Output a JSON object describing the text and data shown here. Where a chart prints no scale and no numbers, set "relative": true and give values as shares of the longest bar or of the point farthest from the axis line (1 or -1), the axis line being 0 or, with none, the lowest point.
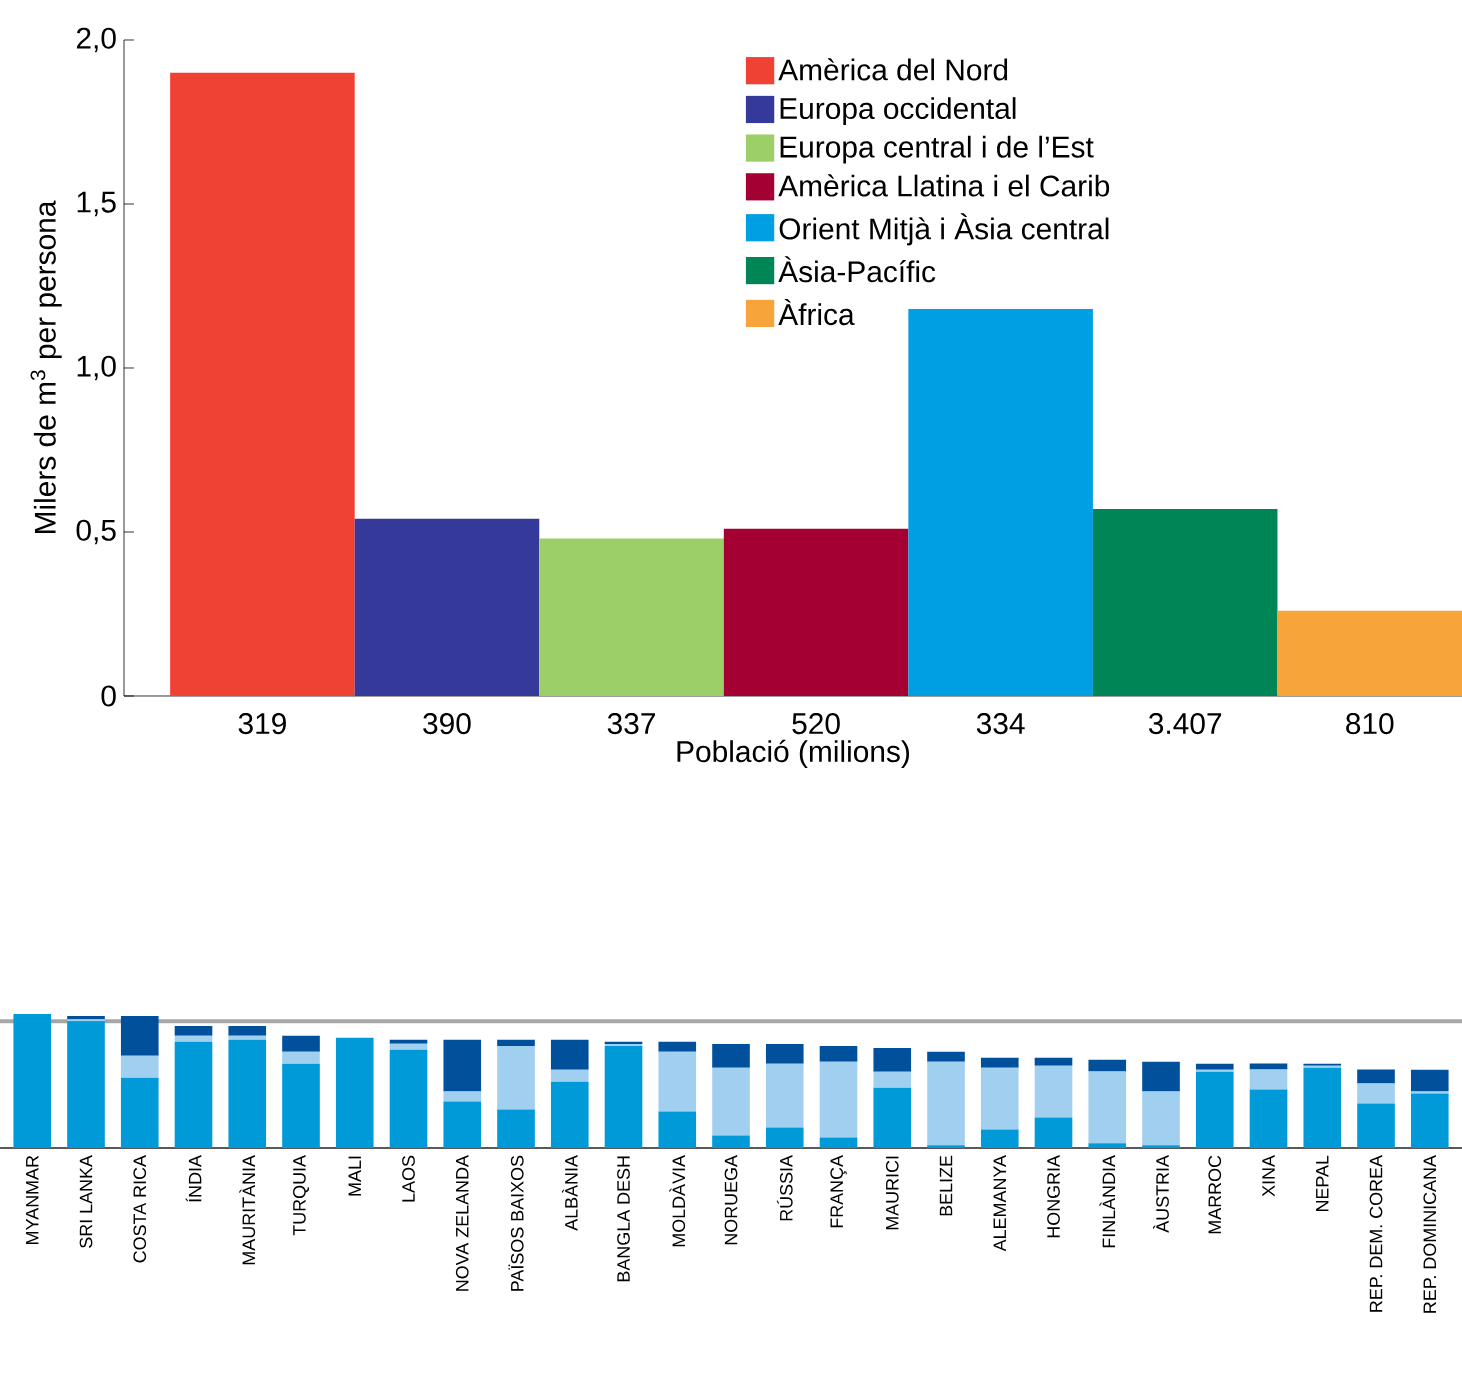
{
  "chart_data": [
    {
      "type": "bar",
      "ylabel": "Milers de m$^{3}$ per persona",
      "xlabel": "Població (milions)",
      "categories": [
        "319",
        "390",
        "337",
        "520",
        "334",
        "3.407",
        "810"
      ],
      "ylim": [
        0,
        2
      ],
      "yticks": [
        0,
        {
          "value": 0.5,
          "label": "0,5"
        },
        {
          "value": 1,
          "label": "1,0"
        },
        {
          "value": 1.5,
          "label": "1,5"
        },
        {
          "value": 2,
          "label": "2,0"
        }
      ],
      "legend": "top right",
      "series": [
        {
          "name": "Amèrica del Nord",
          "color": "#ef4134",
          "values": [
            1.9,
            null,
            null,
            null,
            null,
            null,
            null
          ]
        },
        {
          "name": "Europa occidental",
          "color": "#35399a",
          "values": [
            null,
            0.54,
            null,
            null,
            null,
            null,
            null
          ]
        },
        {
          "name": "Europa central i de l’Est",
          "color": "#9ccf68",
          "values": [
            null,
            null,
            0.48,
            null,
            null,
            null,
            null
          ]
        },
        {
          "name": "Amèrica Llatina i el Carib",
          "color": "#a50034",
          "values": [
            null,
            null,
            null,
            0.51,
            null,
            null,
            null
          ]
        },
        {
          "name": "Orient Mitjà i Àsia central",
          "color": "#009fe3",
          "values": [
            null,
            null,
            null,
            null,
            1.18,
            null,
            null
          ]
        },
        {
          "name": "Àsia-Pacífic",
          "color": "#008556",
          "values": [
            null,
            null,
            null,
            null,
            null,
            0.57,
            null
          ]
        },
        {
          "name": "Àfrica",
          "color": "#f7a43a",
          "values": [
            null,
            null,
            null,
            null,
            null,
            null,
            0.26
          ]
        }
      ]
    },
    {
      "type": "bar",
      "stacked": true,
      "relative": true,
      "tick_labels": "x",
      "categories": [
        "MYANMAR",
        "SRI LANKA",
        "COSTA RICA",
        "ÍNDIA",
        "MAURITÀNIA",
        "TURQUIA",
        "MALI",
        "LAOS",
        "NOVA ZELANDA",
        "PAÏSOS BAIXOS",
        "ALBÀNIA",
        "BANGLA DESH",
        "MOLDÀVIA",
        "NORUEGA",
        "RÚSSIA",
        "FRANÇA",
        "MAURICI",
        "BELIZE",
        "ALEMANYA",
        "HONGRIA",
        "FINLÀNDIA",
        "ÀUSTRIA",
        "MARROC",
        "XINA",
        "NEPAL",
        "REP. DEM. COREA",
        "REP. DOMINICANA"
      ],
      "ref_lines": [
        {
          "axis": "y",
          "value": 0.945,
          "color": "#a6a6a6"
        }
      ],
      "series": [
        {
          "color": "#009ad8",
          "values": [
            1.0,
            0.946,
            0.525,
            0.792,
            0.807,
            0.629,
            0.822,
            0.733,
            0.347,
            0.287,
            0.495,
            0.762,
            0.272,
            0.094,
            0.153,
            0.079,
            0.45,
            0.02,
            0.139,
            0.228,
            0.035,
            0.02,
            0.569,
            0.436,
            0.599,
            0.332,
            0.406
          ]
        },
        {
          "color": "#a1cff0",
          "values": [
            null,
            0.015,
            0.163,
            0.045,
            0.03,
            0.089,
            null,
            0.045,
            0.074,
            0.475,
            0.089,
            0.015,
            0.446,
            0.505,
            0.475,
            0.564,
            0.119,
            0.624,
            0.46,
            0.386,
            0.535,
            0.401,
            0.015,
            0.149,
            0.015,
            0.149,
            0.015
          ]
        },
        {
          "color": "#00509b",
          "values": [
            null,
            0.025,
            0.297,
            0.074,
            0.074,
            0.119,
            null,
            0.03,
            0.386,
            0.045,
            0.223,
            0.015,
            0.074,
            0.178,
            0.149,
            0.119,
            0.178,
            0.074,
            0.074,
            0.059,
            0.089,
            0.223,
            0.045,
            0.045,
            0.015,
            0.104,
            0.163
          ]
        }
      ]
    }
  ]
}
